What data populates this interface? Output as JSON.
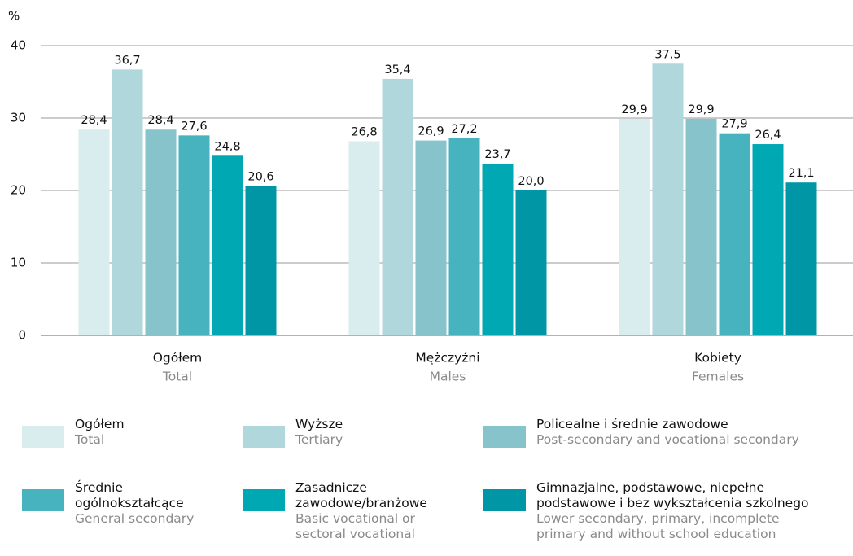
{
  "chart_data": {
    "type": "bar",
    "y_axis_label": "%",
    "categories": [
      "Ogółem",
      "Mężczyźni",
      "Kobiety"
    ],
    "categories_en": [
      "Total",
      "Males",
      "Females"
    ],
    "ylim": [
      0,
      40
    ],
    "yticks": [
      0,
      10,
      20,
      30,
      40
    ],
    "grid": true,
    "series": [
      {
        "name": "Ogółem",
        "name_en": "Total",
        "color": "#d9ecee",
        "values": [
          28.4,
          26.8,
          29.9
        ],
        "value_labels": [
          "28,4",
          "26,8",
          "29,9"
        ]
      },
      {
        "name": "Wyższe",
        "name_en": "Tertiary",
        "color": "#afd7dc",
        "values": [
          36.7,
          35.4,
          37.5
        ],
        "value_labels": [
          "36,7",
          "35,4",
          "37,5"
        ]
      },
      {
        "name": "Policealne i średnie zawodowe",
        "name_en": "Post-secondary and vocational secondary",
        "color": "#86c3cb",
        "values": [
          28.4,
          26.9,
          29.9
        ],
        "value_labels": [
          "28,4",
          "26,9",
          "29,9"
        ]
      },
      {
        "name": "Średnie ogólnokształcące",
        "name_en": "General secondary",
        "color": "#47b3be",
        "values": [
          27.6,
          27.2,
          27.9
        ],
        "value_labels": [
          "27,6",
          "27,2",
          "27,9"
        ]
      },
      {
        "name": "Zasadnicze zawodowe/branżowe",
        "name_en": "Basic vocational or sectoral vocational",
        "color": "#00a8b3",
        "values": [
          24.8,
          23.7,
          26.4
        ],
        "value_labels": [
          "24,8",
          "23,7",
          "26,4"
        ]
      },
      {
        "name": "Gimnazjalne, podstawowe, niepełne podstawowe i bez wykształcenia szkolnego",
        "name_en": "Lower secondary, primary, incomplete primary and without school education",
        "color": "#0096a5",
        "values": [
          20.6,
          20.0,
          21.1
        ],
        "value_labels": [
          "20,6",
          "20,0",
          "21,1"
        ]
      }
    ]
  }
}
